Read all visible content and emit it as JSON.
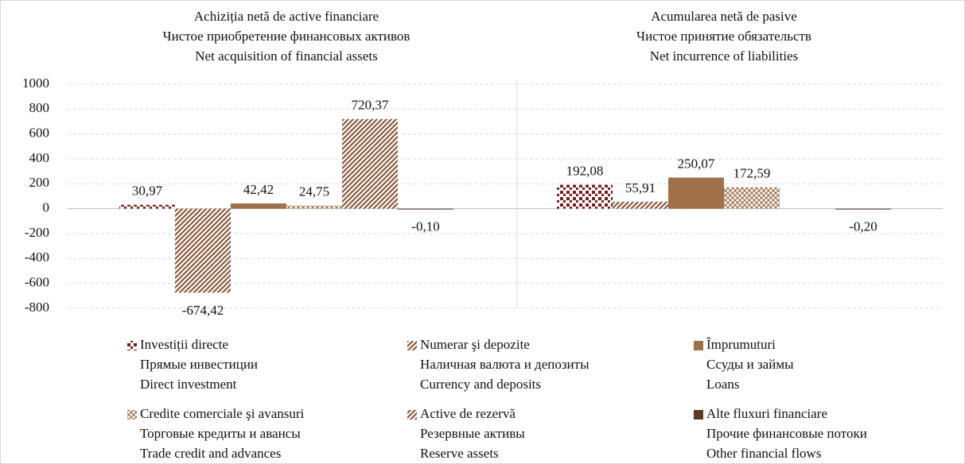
{
  "chart_data": {
    "type": "bar",
    "categories": [
      [
        "Achiziția netă de active financiare",
        "Чистое приобретение финансовых активов",
        "Net acquisition of financial assets"
      ],
      [
        "Acumularea netă de pasive",
        "Чистое принятие обязательств",
        "Net incurrence of liabilities"
      ]
    ],
    "series": [
      {
        "name": [
          "Investiții directe",
          "Прямые инвестиции",
          "Direct investment"
        ],
        "color": "#7a1e1e",
        "pattern": "dots",
        "values": [
          30.97,
          192.08
        ],
        "value_labels": [
          "30,97",
          "192,08"
        ]
      },
      {
        "name": [
          "Numerar şi depozite",
          "Наличная валюта и депозиты",
          "Currency and deposits"
        ],
        "color": "#8b5a3c",
        "pattern": "diagonal",
        "values": [
          -674.42,
          55.91
        ],
        "value_labels": [
          "-674,42",
          "55,91"
        ]
      },
      {
        "name": [
          "Împrumuturi",
          "Ссуды и займы",
          "Loans"
        ],
        "color": "#a0704a",
        "pattern": "solid",
        "values": [
          42.42,
          250.07
        ],
        "value_labels": [
          "42,42",
          "250,07"
        ]
      },
      {
        "name": [
          "Credite comerciale şi avansuri",
          "Торговые кредиты и авансы",
          "Trade credit and advances"
        ],
        "color": "#a0704a",
        "pattern": "cross",
        "values": [
          24.75,
          172.59
        ],
        "value_labels": [
          "24,75",
          "172,59"
        ]
      },
      {
        "name": [
          "Active de rezervă",
          "Резервные активы",
          "Reserve assets"
        ],
        "color": "#8b5a3c",
        "pattern": "diagonal",
        "values": [
          720.37,
          null
        ],
        "value_labels": [
          "720,37",
          null
        ]
      },
      {
        "name": [
          "Alte fluxuri financiare",
          "Прочие финансовые потоки",
          "Other financial flows"
        ],
        "color": "#5a3a28",
        "pattern": "solid",
        "values": [
          -0.1,
          -0.2
        ],
        "value_labels": [
          "-0,10",
          "-0,20"
        ]
      }
    ],
    "ylim": [
      -800,
      1000
    ],
    "yticks": [
      -800,
      -600,
      -400,
      -200,
      0,
      200,
      400,
      600,
      800,
      1000
    ],
    "grid": true
  }
}
